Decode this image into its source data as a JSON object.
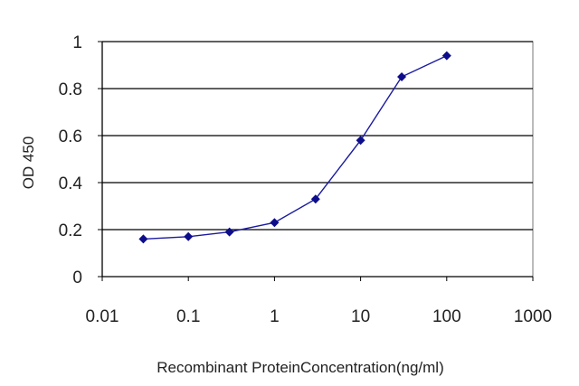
{
  "chart_data": {
    "type": "line",
    "title": "",
    "xlabel": "Recombinant ProteinConcentration(ng/ml)",
    "ylabel": "OD 450",
    "x_scale": "log",
    "xlim": [
      0.01,
      1000
    ],
    "ylim": [
      0,
      1
    ],
    "x_tick_labels": [
      "0.01",
      "0.1",
      "1",
      "10",
      "100",
      "1000"
    ],
    "y_tick_labels": [
      "0",
      "0.2",
      "0.4",
      "0.6",
      "0.8",
      "1"
    ],
    "grid": "horizontal",
    "legend": "none",
    "series": [
      {
        "x": [
          0.03,
          0.1,
          0.3,
          1,
          3,
          10,
          30,
          100
        ],
        "y": [
          0.16,
          0.17,
          0.19,
          0.23,
          0.33,
          0.58,
          0.85,
          0.94
        ]
      }
    ],
    "colors": {
      "series": "#1a1aa0",
      "marker": "#0d0d8c",
      "grid": "#000000",
      "plot_bg": "#ffffff"
    }
  }
}
